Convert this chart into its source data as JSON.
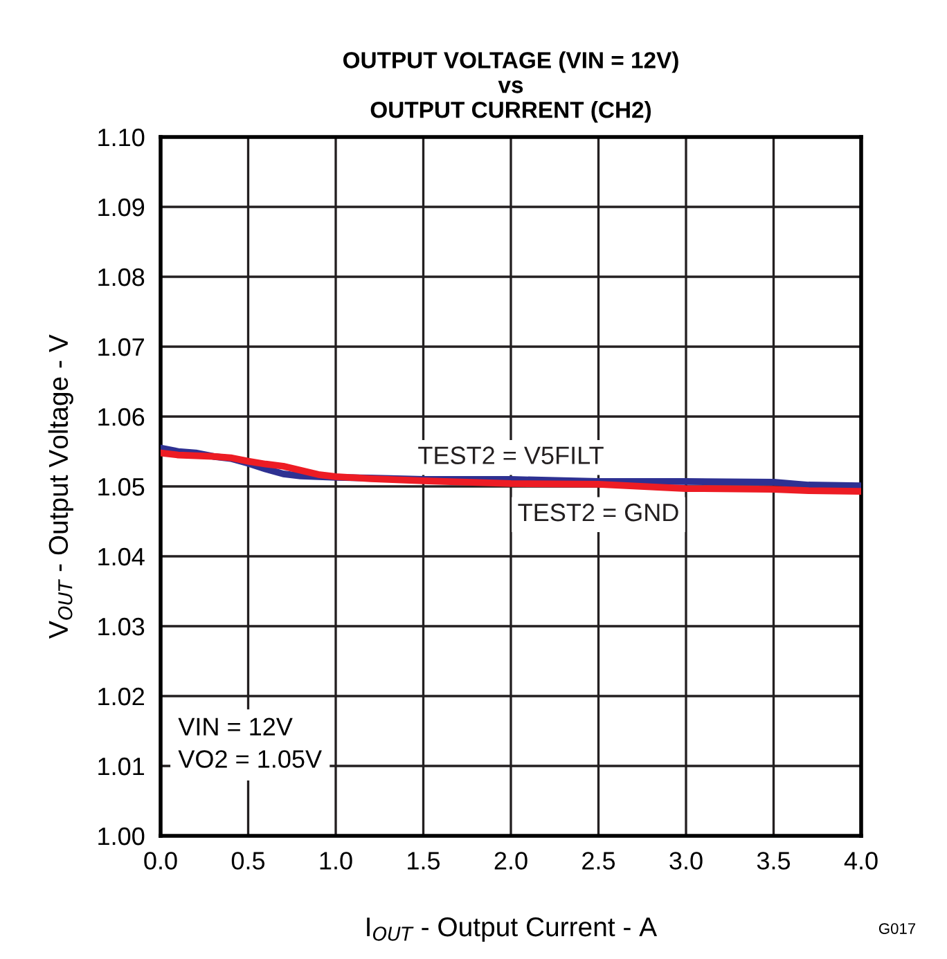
{
  "chart_data": {
    "type": "line",
    "title": "OUTPUT VOLTAGE (VIN = 12V)\nvs\nOUTPUT CURRENT (CH2)",
    "xlabel": "I$_{OUT}$ - Output Current - A",
    "ylabel": "V$_{OUT}$ - Output Voltage - V",
    "series": [
      {
        "name": "TEST2 = V5FILT",
        "color": "#2e3192",
        "x": [
          0.0,
          0.1,
          0.2,
          0.3,
          0.4,
          0.5,
          0.6,
          0.7,
          0.8,
          0.9,
          1.0,
          1.2,
          1.5,
          2.0,
          2.5,
          3.0,
          3.5,
          3.7,
          4.0
        ],
        "values": [
          1.0555,
          1.055,
          1.0548,
          1.0543,
          1.054,
          1.0533,
          1.0525,
          1.0518,
          1.0515,
          1.0514,
          1.0513,
          1.0512,
          1.051,
          1.051,
          1.0507,
          1.0507,
          1.0506,
          1.0502,
          1.0501
        ]
      },
      {
        "name": "TEST2 = GND",
        "color": "#ed1c24",
        "x": [
          0.0,
          0.1,
          0.2,
          0.3,
          0.4,
          0.5,
          0.6,
          0.7,
          0.8,
          0.9,
          1.0,
          1.2,
          1.5,
          2.0,
          2.5,
          3.0,
          3.5,
          3.7,
          4.0
        ],
        "values": [
          1.0548,
          1.0545,
          1.0544,
          1.0543,
          1.0541,
          1.0536,
          1.0532,
          1.0529,
          1.0523,
          1.0517,
          1.0514,
          1.0511,
          1.0508,
          1.0504,
          1.0503,
          1.0497,
          1.0496,
          1.0494,
          1.0493
        ]
      }
    ],
    "xlim": [
      0,
      4
    ],
    "xticks": [
      {
        "value": 0,
        "label": "0.0"
      },
      {
        "value": 0.5,
        "label": "0.5"
      },
      {
        "value": 1,
        "label": "1.0"
      },
      {
        "value": 1.5,
        "label": "1.5"
      },
      {
        "value": 2,
        "label": "2.0"
      },
      {
        "value": 2.5,
        "label": "2.5"
      },
      {
        "value": 3,
        "label": "3.0"
      },
      {
        "value": 3.5,
        "label": "3.5"
      },
      {
        "value": 4,
        "label": "4.0"
      }
    ],
    "ylim": [
      1.0,
      1.1
    ],
    "yticks": [
      {
        "value": 1.0,
        "label": "1.00"
      },
      {
        "value": 1.01,
        "label": "1.01"
      },
      {
        "value": 1.02,
        "label": "1.02"
      },
      {
        "value": 1.03,
        "label": "1.03"
      },
      {
        "value": 1.04,
        "label": "1.04"
      },
      {
        "value": 1.05,
        "label": "1.05"
      },
      {
        "value": 1.06,
        "label": "1.06"
      },
      {
        "value": 1.07,
        "label": "1.07"
      },
      {
        "value": 1.08,
        "label": "1.08"
      },
      {
        "value": 1.09,
        "label": "1.09"
      },
      {
        "value": 1.1,
        "label": "1.10"
      }
    ],
    "grid": true,
    "legend": false,
    "line_style": "solid",
    "marker": "none",
    "annotations": [
      "VIN = 12V\nVO2 = 1.05V",
      "G017"
    ]
  }
}
